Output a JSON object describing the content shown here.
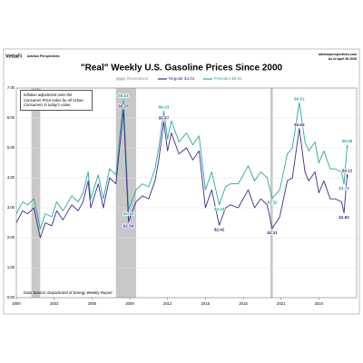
{
  "header": {
    "brand": "VettaFi",
    "sub_brand": "Advisor Perspectives",
    "site": "advisorperspectives.com",
    "as_of": "As of April 28 2026"
  },
  "chart_data": {
    "type": "line",
    "title": "\"Real\" Weekly U.S. Gasoline Prices Since 2000",
    "note": "Inflation adjustment uses the Consumer Price Index for All Urban Consumers in today's value.",
    "source": "Data Source: Department of Energy Weekly Report",
    "recession_label": "Recessions",
    "recession_color": "#c8c8c8",
    "recessions": [
      [
        2001.2,
        2001.9
      ],
      [
        2007.9,
        2009.5
      ],
      [
        2020.15,
        2020.35
      ]
    ],
    "x": [
      2000.0,
      2000.5,
      2000.9,
      2001.4,
      2001.9,
      2002.3,
      2002.8,
      2003.2,
      2003.7,
      2004.4,
      2004.9,
      2005.3,
      2005.7,
      2005.9,
      2006.5,
      2006.9,
      2007.4,
      2007.9,
      2008.5,
      2008.9,
      2009.5,
      2010.0,
      2010.5,
      2011.0,
      2011.3,
      2011.7,
      2012.0,
      2012.3,
      2012.9,
      2013.5,
      2014.0,
      2014.5,
      2015.0,
      2015.5,
      2016.1,
      2016.6,
      2017.0,
      2017.6,
      2018.4,
      2018.9,
      2019.4,
      2019.9,
      2020.3,
      2020.9,
      2021.5,
      2021.9,
      2022.45,
      2022.9,
      2023.2,
      2023.7,
      2024.0,
      2024.4,
      2024.9,
      2025.3,
      2025.8,
      2026.0,
      2026.25,
      2026.3
    ],
    "series": [
      {
        "name": "Regular $4.04",
        "color": "#3b2a8c",
        "values": [
          2.5,
          2.9,
          2.8,
          3.0,
          2.0,
          2.5,
          2.4,
          2.9,
          2.6,
          3.1,
          2.9,
          3.2,
          3.9,
          3.0,
          3.8,
          3.0,
          4.0,
          3.8,
          6.26,
          2.54,
          3.2,
          3.4,
          3.3,
          3.9,
          4.6,
          5.87,
          4.9,
          5.5,
          4.8,
          5.0,
          4.6,
          4.9,
          3.0,
          3.6,
          2.42,
          3.0,
          3.1,
          3.0,
          3.6,
          3.0,
          3.3,
          3.1,
          2.31,
          2.7,
          3.9,
          4.0,
          5.65,
          4.2,
          3.9,
          4.2,
          3.5,
          3.9,
          3.3,
          3.3,
          3.2,
          2.83,
          4.12,
          4.04
        ],
        "value_labels": [
          null,
          null,
          null,
          null,
          null,
          null,
          null,
          null,
          null,
          null,
          null,
          null,
          null,
          null,
          null,
          null,
          null,
          null,
          "$6.26",
          "$2.54",
          null,
          null,
          null,
          null,
          null,
          "$5.87",
          null,
          null,
          null,
          null,
          null,
          null,
          null,
          null,
          "$2.42",
          null,
          null,
          null,
          null,
          null,
          null,
          null,
          "$2.31",
          null,
          null,
          null,
          "$5.65",
          null,
          null,
          null,
          null,
          null,
          null,
          null,
          null,
          "$2.83",
          "$4.12",
          null
        ]
      },
      {
        "name": "Premium $5.02",
        "color": "#2aa6a0",
        "values": [
          2.8,
          3.2,
          3.1,
          3.3,
          2.3,
          2.8,
          2.7,
          3.2,
          2.9,
          3.4,
          3.2,
          3.5,
          4.2,
          3.3,
          4.1,
          3.3,
          4.3,
          4.1,
          6.61,
          2.94,
          3.6,
          3.8,
          3.7,
          4.3,
          5.0,
          6.23,
          5.3,
          5.9,
          5.2,
          5.5,
          5.1,
          5.4,
          3.6,
          4.2,
          3.1,
          3.7,
          3.8,
          3.8,
          4.4,
          3.9,
          4.2,
          4.0,
          3.32,
          3.6,
          4.8,
          5.0,
          6.51,
          5.2,
          4.9,
          5.2,
          4.5,
          4.9,
          4.3,
          4.3,
          4.2,
          3.79,
          5.09,
          5.02
        ],
        "value_labels": [
          null,
          null,
          null,
          null,
          null,
          null,
          null,
          null,
          null,
          null,
          null,
          null,
          null,
          null,
          null,
          null,
          null,
          null,
          "$6.61",
          "$2.94",
          null,
          null,
          null,
          null,
          null,
          "$6.23",
          null,
          null,
          null,
          null,
          null,
          null,
          null,
          null,
          "$3.10",
          null,
          null,
          null,
          null,
          null,
          null,
          null,
          "$3.32",
          null,
          null,
          null,
          "$6.51",
          null,
          null,
          null,
          null,
          null,
          null,
          null,
          null,
          "$3.79",
          "$5.09",
          null
        ]
      }
    ],
    "xlim": [
      2000,
      2027
    ],
    "xticks": [
      2000,
      2003,
      2006,
      2009,
      2012,
      2015,
      2018,
      2021,
      2024
    ],
    "ylim": [
      0,
      7
    ],
    "yticks": [
      {
        "value": 0,
        "label": "0.00"
      },
      {
        "value": 1,
        "label": "1.00"
      },
      {
        "value": 2,
        "label": "2.00"
      },
      {
        "value": 3,
        "label": "3.00"
      },
      {
        "value": 4,
        "label": "4.00"
      },
      {
        "value": 5,
        "label": "5.00"
      },
      {
        "value": 6,
        "label": "6.00"
      },
      {
        "value": 7,
        "label": "7.00"
      }
    ],
    "grid": true
  }
}
